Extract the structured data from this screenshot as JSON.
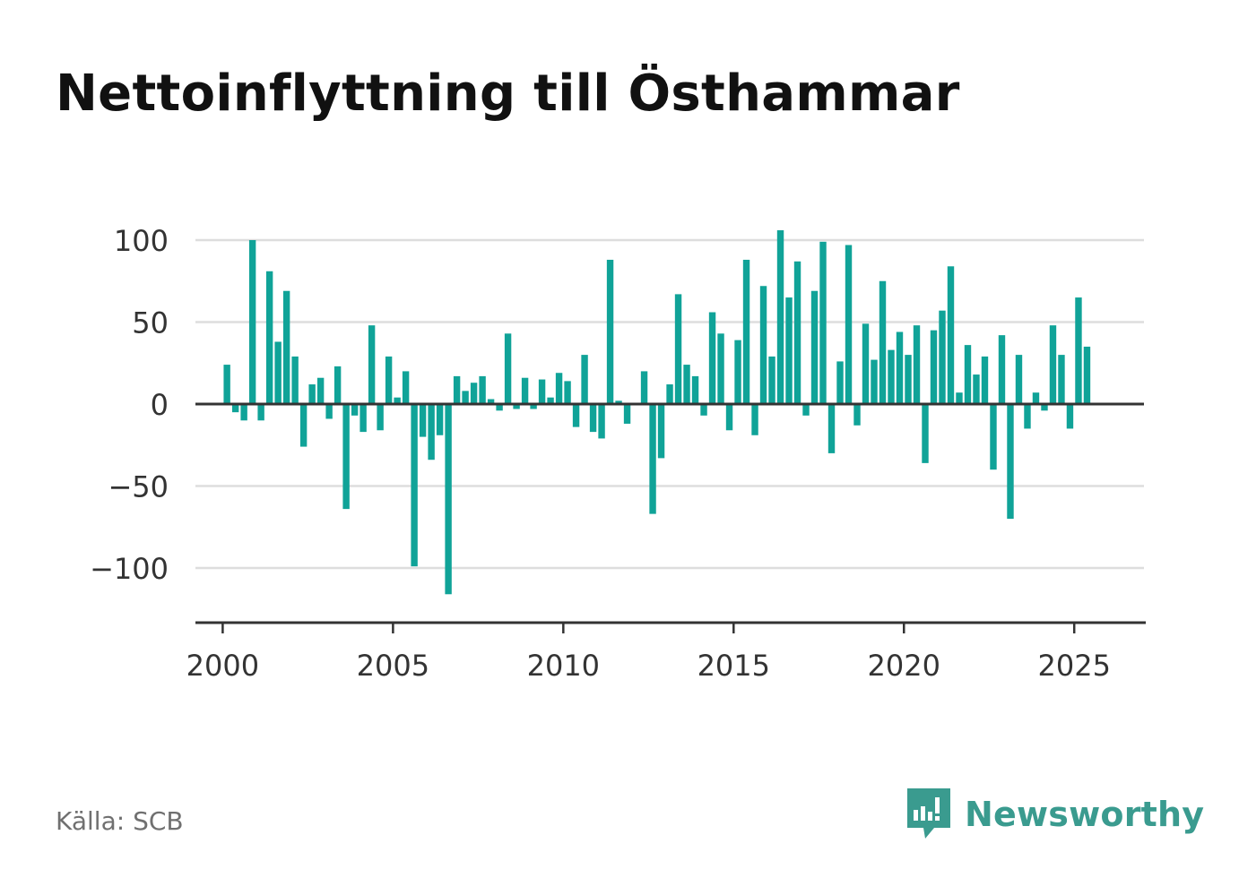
{
  "title": "Nettoinflyttning till Östhammar",
  "source": "Källa: SCB",
  "brand": {
    "name": "Newsworthy",
    "icon": "newsworthy-logo-icon"
  },
  "colors": {
    "bar": "#10a398",
    "grid": "#dddddd",
    "axis": "#333333",
    "text": "#333333",
    "brand": "#3a9b8f"
  },
  "chart_data": {
    "type": "bar",
    "title": "Nettoinflyttning till Östhammar",
    "xlabel": "",
    "ylabel": "",
    "ylim": [
      -133,
      100
    ],
    "xlim": [
      1999.2,
      2027.1
    ],
    "yticks": [
      100,
      50,
      0,
      -50,
      -100
    ],
    "ytick_labels": [
      "100",
      "50",
      "0",
      "−50",
      "−100"
    ],
    "xticks": [
      2000,
      2005,
      2010,
      2015,
      2020,
      2025
    ],
    "xtick_labels": [
      "2000",
      "2005",
      "2010",
      "2015",
      "2020",
      "2025"
    ],
    "grid": true,
    "frequency": "quarterly",
    "start": "2000 Q1",
    "values": [
      24,
      -5,
      -10,
      100,
      -10,
      81,
      38,
      69,
      29,
      -26,
      12,
      16,
      -9,
      23,
      -64,
      -7,
      -17,
      48,
      -16,
      29,
      4,
      20,
      -99,
      -20,
      -34,
      -19,
      -116,
      17,
      8,
      13,
      17,
      3,
      -4,
      43,
      -3,
      16,
      -3,
      15,
      4,
      19,
      14,
      -14,
      30,
      -17,
      -21,
      88,
      2,
      -12,
      0,
      20,
      -67,
      -33,
      12,
      67,
      24,
      17,
      -7,
      56,
      43,
      -16,
      39,
      88,
      -19,
      72,
      29,
      106,
      65,
      87,
      -7,
      69,
      99,
      -30,
      26,
      97,
      -13,
      49,
      27,
      75,
      33,
      44,
      30,
      48,
      -36,
      45,
      57,
      84,
      7,
      36,
      18,
      29,
      -40,
      42,
      -70,
      30,
      -15,
      7,
      -4,
      48,
      30,
      -15,
      65,
      35
    ]
  }
}
